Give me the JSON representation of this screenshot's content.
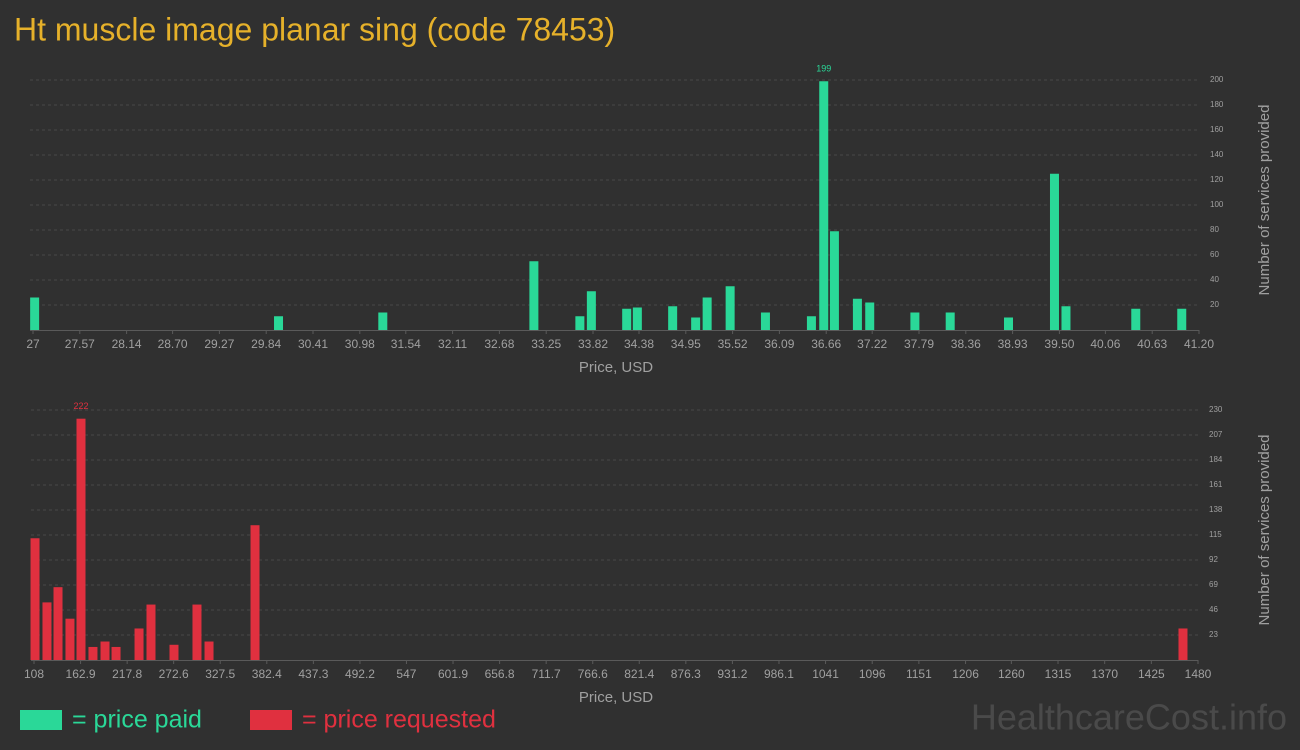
{
  "title": "Ht muscle image planar sing (code 78453)",
  "watermark": "HealthcareCost.info",
  "chart_data": [
    {
      "type": "bar",
      "x_label": "Price, USD",
      "y_label": "Number of services provided",
      "grid": true,
      "x": [
        27.02,
        29.99,
        31.26,
        33.1,
        33.66,
        33.8,
        34.23,
        34.36,
        34.79,
        35.07,
        35.21,
        35.49,
        35.92,
        36.48,
        36.63,
        36.76,
        37.04,
        37.19,
        37.74,
        38.17,
        38.88,
        39.44,
        39.58,
        40.43,
        40.99
      ],
      "series": [
        {
          "name": "= price paid",
          "color": "#2ad898",
          "values": [
            26,
            11,
            14,
            55,
            11,
            31,
            17,
            18,
            19,
            10,
            26,
            35,
            14,
            11,
            199,
            79,
            25,
            22,
            14,
            14,
            10,
            125,
            19,
            17,
            17
          ]
        }
      ],
      "xlim": [
        27,
        41.2
      ],
      "xticks": [
        27,
        27.57,
        28.14,
        {
          "value": 28.7,
          "label": "28.70"
        },
        29.27,
        29.84,
        30.41,
        30.98,
        31.54,
        32.11,
        32.68,
        33.25,
        33.82,
        34.38,
        34.95,
        35.52,
        36.09,
        36.66,
        37.22,
        37.79,
        38.36,
        38.93,
        {
          "value": 39.5,
          "label": "39.50"
        },
        40.06,
        40.63,
        {
          "value": 41.2,
          "label": "41.20"
        }
      ],
      "ylim": [
        0,
        200
      ],
      "yticks": [
        20,
        40,
        60,
        80,
        100,
        120,
        140,
        160,
        180,
        200
      ]
    },
    {
      "type": "bar",
      "x_label": "Price, USD",
      "y_label": "Number of services provided",
      "grid": true,
      "x": [
        109.2,
        123.3,
        136.3,
        150.4,
        163.4,
        177.5,
        191.7,
        204.7,
        231.8,
        245.9,
        273.0,
        300.1,
        314.3,
        368.5,
        1462.3
      ],
      "series": [
        {
          "name": "= price requested",
          "color": "#e0303f",
          "values": [
            112,
            53,
            67,
            38,
            222,
            12,
            17,
            12,
            29,
            51,
            14,
            51,
            17,
            124,
            29
          ]
        }
      ],
      "xlim": [
        108,
        1480
      ],
      "xticks": [
        108,
        162.9,
        217.8,
        272.6,
        327.5,
        382.4,
        437.3,
        492.2,
        547,
        601.9,
        656.8,
        711.7,
        766.6,
        821.4,
        876.3,
        931.2,
        986.1,
        1041,
        1096,
        1151,
        1206,
        1260,
        1315,
        1370,
        1425,
        1480
      ],
      "ylim": [
        0,
        230
      ],
      "yticks": [
        23,
        46,
        69,
        92,
        115,
        138,
        161,
        184,
        207,
        230
      ]
    }
  ]
}
